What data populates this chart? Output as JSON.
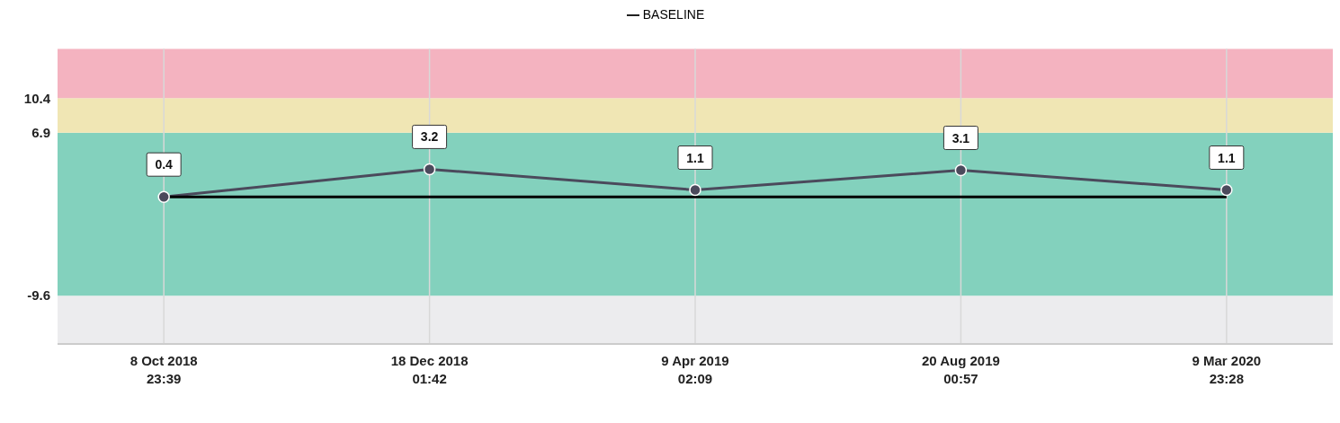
{
  "chart_data": {
    "type": "line",
    "categories": [
      "8 Oct 2018\n23:39",
      "18 Dec 2018\n01:42",
      "9 Apr 2019\n02:09",
      "20 Aug 2019\n00:57",
      "9 Mar 2020\n23:28"
    ],
    "series": [
      {
        "color": "#4b4a5c",
        "values": [
          0.4,
          3.2,
          1.1,
          3.1,
          1.1
        ],
        "value_labels": [
          "0.4",
          "3.2",
          "1.1",
          "3.1",
          "1.1"
        ],
        "marker": "circle"
      },
      {
        "name": "BASELINE",
        "color": "#000000",
        "values": [
          0.4,
          0.4,
          0.4,
          0.4,
          0.4
        ],
        "marker": "none"
      }
    ],
    "ylim": [
      -14.5,
      15.4
    ],
    "yticks": [
      -9.6,
      6.9,
      10.4
    ],
    "bands": [
      {
        "axis": "y",
        "from": -14.5,
        "to": -9.6,
        "color": "#ececee"
      },
      {
        "axis": "y",
        "from": -9.6,
        "to": 6.9,
        "color": "#83d1bd"
      },
      {
        "axis": "y",
        "from": 6.9,
        "to": 10.4,
        "color": "#f0e6b4"
      },
      {
        "axis": "y",
        "from": 10.4,
        "to": 15.4,
        "color": "#f4b3c0"
      }
    ],
    "grid": "x",
    "legend": "top"
  }
}
